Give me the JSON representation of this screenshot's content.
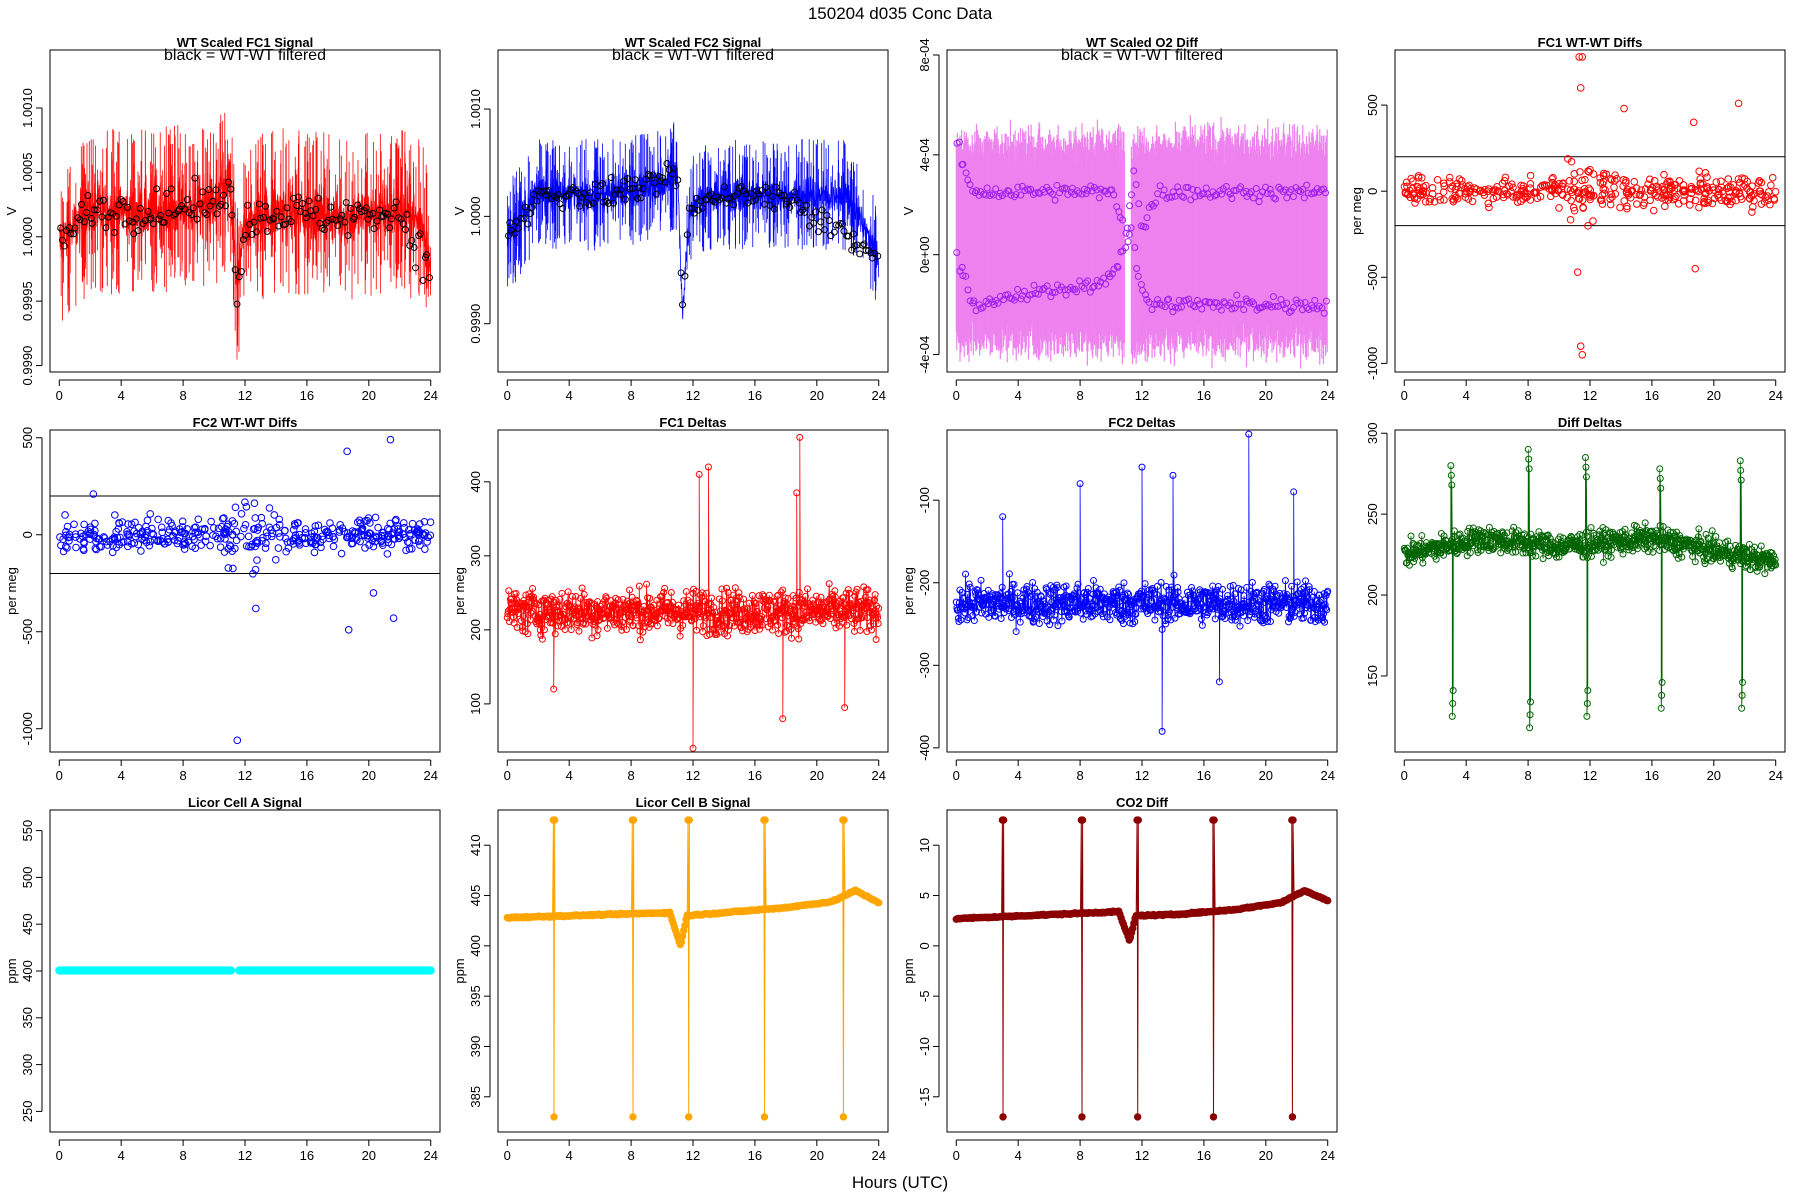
{
  "figure": {
    "title": "150204    d035    Conc Data",
    "xlabel": "Hours (UTC)"
  },
  "chart_data": [
    {
      "id": "fc1sig",
      "type": "line",
      "title": "WT Scaled FC1 Signal",
      "legend_text": "black = WT-WT filtered",
      "ylabel": "V",
      "xlim": [
        -0.6,
        24.6
      ],
      "xticks": [
        0,
        4,
        8,
        12,
        16,
        20,
        24
      ],
      "ylim": [
        0.99895,
        1.00145
      ],
      "yticks": [
        0.999,
        0.9995,
        1.0,
        1.0005,
        1.001
      ],
      "ytick_labels": [
        "0.9990",
        "0.9995",
        "1.0000",
        "1.0005",
        "1.0010"
      ],
      "series": [
        {
          "name": "signal",
          "color": "#ff0000",
          "pattern": "noisy",
          "base": [
            [
              0,
              0.99995
            ],
            [
              2,
              1.0002
            ],
            [
              6,
              1.0002
            ],
            [
              10,
              1.00025
            ],
            [
              11,
              1.0004
            ],
            [
              11.5,
              0.9996
            ],
            [
              12,
              1.0001
            ],
            [
              14,
              1.0002
            ],
            [
              18,
              1.00015
            ],
            [
              22,
              1.0002
            ],
            [
              23.5,
              1.0001
            ],
            [
              24,
              0.9997
            ]
          ],
          "noise": 0.00025
        },
        {
          "name": "WT-WT filtered",
          "color": "#000000",
          "pattern": "circles",
          "base": [
            [
              0,
              0.99995
            ],
            [
              2,
              1.0002
            ],
            [
              6,
              1.0002
            ],
            [
              10,
              1.00025
            ],
            [
              11,
              1.0004
            ],
            [
              11.5,
              0.9996
            ],
            [
              12,
              1.0001
            ],
            [
              14,
              1.0002
            ],
            [
              18,
              1.00015
            ],
            [
              22,
              1.0002
            ],
            [
              24,
              0.9997
            ]
          ],
          "noise": 0.00015
        }
      ]
    },
    {
      "id": "fc2sig",
      "type": "line",
      "title": "WT Scaled FC2 Signal",
      "legend_text": "black = WT-WT filtered",
      "ylabel": "V",
      "xlim": [
        -0.6,
        24.6
      ],
      "xticks": [
        0,
        4,
        8,
        12,
        16,
        20,
        24
      ],
      "ylim": [
        0.99855,
        1.00155
      ],
      "yticks": [
        0.999,
        1.0,
        1.001
      ],
      "ytick_labels": [
        "0.9990",
        "1.0000",
        "1.0010"
      ],
      "series": [
        {
          "name": "signal",
          "color": "#0000ff",
          "pattern": "noisy",
          "base": [
            [
              0,
              0.9998
            ],
            [
              2,
              1.0002
            ],
            [
              6,
              1.0002
            ],
            [
              10,
              1.0003
            ],
            [
              11,
              1.0004
            ],
            [
              11.3,
              0.9991
            ],
            [
              11.8,
              1.0001
            ],
            [
              14,
              1.0002
            ],
            [
              18,
              1.0002
            ],
            [
              22,
              1.0002
            ],
            [
              24,
              0.9996
            ]
          ],
          "noise": 0.0002
        },
        {
          "name": "WT-WT filtered",
          "color": "#000000",
          "pattern": "circles",
          "base": [
            [
              0,
              0.9998
            ],
            [
              2,
              1.0002
            ],
            [
              6,
              1.0002
            ],
            [
              10,
              1.0003
            ],
            [
              11,
              1.0004
            ],
            [
              11.3,
              0.9991
            ],
            [
              11.8,
              1.0001
            ],
            [
              14,
              1.0002
            ],
            [
              18,
              1.0002
            ],
            [
              24,
              0.9996
            ]
          ],
          "noise": 0.00012
        }
      ]
    },
    {
      "id": "o2diff",
      "type": "line",
      "title": "WT Scaled O2 Diff",
      "legend_text": "black = WT-WT filtered",
      "ylabel": "V",
      "xlim": [
        -0.6,
        24.6
      ],
      "xticks": [
        0,
        4,
        8,
        12,
        16,
        20,
        24
      ],
      "ylim": [
        -0.00047,
        0.00082
      ],
      "yticks": [
        -0.0004,
        0.0,
        0.0004,
        0.0008
      ],
      "ytick_labels": [
        "-4e-04",
        "0e+00",
        "4e-04",
        "8e-04"
      ],
      "series": [
        {
          "name": "signal band",
          "color": "#ee82ee",
          "pattern": "band",
          "upper": 0.00045,
          "lower": -0.00035
        },
        {
          "name": "upper level",
          "color": "#a020f0",
          "pattern": "circles",
          "base": [
            [
              0,
              0.00045
            ],
            [
              1,
              0.00025
            ],
            [
              10,
              0.00025
            ],
            [
              11,
              0.0001
            ],
            [
              11.5,
              0.00035
            ],
            [
              12,
              0.0001
            ],
            [
              13,
              0.00025
            ],
            [
              24,
              0.00025
            ]
          ],
          "noise": 3e-05
        },
        {
          "name": "lower level",
          "color": "#a020f0",
          "pattern": "circles",
          "base": [
            [
              0,
              0.0
            ],
            [
              1,
              -0.0002
            ],
            [
              10,
              -0.0001
            ],
            [
              11.3,
              0.0001
            ],
            [
              11.8,
              -0.0001
            ],
            [
              12.5,
              -0.0002
            ],
            [
              24,
              -0.0002
            ]
          ],
          "noise": 3e-05
        }
      ]
    },
    {
      "id": "fc1wt",
      "type": "scatter",
      "title": "FC1 WT-WT Diffs",
      "ylabel": "per meg",
      "xlim": [
        -0.6,
        24.6
      ],
      "xticks": [
        0,
        4,
        8,
        12,
        16,
        20,
        24
      ],
      "ylim": [
        -1050,
        820
      ],
      "yticks": [
        -1000,
        -500,
        0,
        500
      ],
      "ytick_labels": [
        "-1000",
        "-500",
        "0",
        "500"
      ],
      "hlines": [
        200,
        -200
      ],
      "series": [
        {
          "name": "diffs",
          "color": "#ff0000",
          "pattern": "scatter",
          "center": 0,
          "spread": 80,
          "outliers": [
            [
              11.3,
              780
            ],
            [
              11.5,
              780
            ],
            [
              11.4,
              600
            ],
            [
              11.2,
              -470
            ],
            [
              11.4,
              -900
            ],
            [
              11.5,
              -950
            ],
            [
              14.2,
              480
            ],
            [
              18.7,
              400
            ],
            [
              21.6,
              510
            ],
            [
              18.8,
              -450
            ]
          ]
        }
      ]
    },
    {
      "id": "fc2wt",
      "type": "scatter",
      "title": "FC2 WT-WT Diffs",
      "ylabel": "per meg",
      "xlim": [
        -0.6,
        24.6
      ],
      "xticks": [
        0,
        4,
        8,
        12,
        16,
        20,
        24
      ],
      "ylim": [
        -1120,
        540
      ],
      "yticks": [
        -1000,
        -500,
        0,
        500
      ],
      "ytick_labels": [
        "-1000",
        "-500",
        "0",
        "500"
      ],
      "hlines": [
        200,
        -200
      ],
      "series": [
        {
          "name": "diffs",
          "color": "#0000ff",
          "pattern": "scatter",
          "center": 0,
          "spread": 80,
          "outliers": [
            [
              11.5,
              -1060
            ],
            [
              21.4,
              490
            ],
            [
              18.6,
              430
            ],
            [
              18.7,
              -490
            ],
            [
              20.3,
              -300
            ],
            [
              21.6,
              -430
            ],
            [
              12.7,
              -380
            ],
            [
              2.2,
              210
            ]
          ]
        }
      ]
    },
    {
      "id": "fc1d",
      "type": "line",
      "title": "FC1 Deltas",
      "ylabel": "per meg",
      "xlim": [
        -0.6,
        24.6
      ],
      "xticks": [
        0,
        4,
        8,
        12,
        16,
        20,
        24
      ],
      "ylim": [
        35,
        470
      ],
      "yticks": [
        100,
        200,
        300,
        400
      ],
      "ytick_labels": [
        "100",
        "200",
        "300",
        "400"
      ],
      "series": [
        {
          "name": "deltas",
          "color": "#ff0000",
          "pattern": "noisycircles",
          "base": [
            [
              0,
              225
            ],
            [
              24,
              225
            ]
          ],
          "noise": 30,
          "outliers": [
            [
              12,
              40
            ],
            [
              18.9,
              460
            ],
            [
              13,
              420
            ],
            [
              12.4,
              410
            ],
            [
              18.7,
              385
            ],
            [
              21.8,
              95
            ],
            [
              3,
              120
            ],
            [
              17.8,
              80
            ]
          ]
        }
      ]
    },
    {
      "id": "fc2d",
      "type": "line",
      "title": "FC2 Deltas",
      "ylabel": "per meg",
      "xlim": [
        -0.6,
        24.6
      ],
      "xticks": [
        0,
        4,
        8,
        12,
        16,
        20,
        24
      ],
      "ylim": [
        -405,
        -15
      ],
      "yticks": [
        -100,
        -200,
        -300,
        -400
      ],
      "ytick_labels": [
        "-100",
        "-200",
        "-300",
        "-400"
      ],
      "series": [
        {
          "name": "deltas",
          "color": "#0000ff",
          "pattern": "noisycircles",
          "base": [
            [
              0,
              -225
            ],
            [
              24,
              -225
            ]
          ],
          "noise": 25,
          "outliers": [
            [
              18.9,
              -20
            ],
            [
              12,
              -60
            ],
            [
              13.3,
              -380
            ],
            [
              8,
              -80
            ],
            [
              14,
              -70
            ],
            [
              3,
              -120
            ],
            [
              17,
              -320
            ],
            [
              21.8,
              -90
            ]
          ]
        }
      ]
    },
    {
      "id": "diffd",
      "type": "line",
      "title": "Diff Deltas",
      "ylabel": "",
      "xlim": [
        -0.6,
        24.6
      ],
      "xticks": [
        0,
        4,
        8,
        12,
        16,
        20,
        24
      ],
      "ylim": [
        103,
        302
      ],
      "yticks": [
        150,
        200,
        250,
        300
      ],
      "ytick_labels": [
        "150",
        "200",
        "250",
        "300"
      ],
      "series": [
        {
          "name": "deltas",
          "color": "#006400",
          "pattern": "noisycircles",
          "base": [
            [
              0,
              225
            ],
            [
              5,
              235
            ],
            [
              10,
              230
            ],
            [
              12.5,
              232
            ],
            [
              16,
              235
            ],
            [
              24,
              220
            ]
          ],
          "noise": 8,
          "spikes": [
            [
              3.1,
              280,
              125
            ],
            [
              8.1,
              290,
              118
            ],
            [
              11.8,
              285,
              125
            ],
            [
              16.6,
              278,
              130
            ],
            [
              21.8,
              283,
              130
            ]
          ]
        }
      ]
    },
    {
      "id": "licorA",
      "type": "line",
      "title": "Licor Cell A Signal",
      "ylabel": "ppm",
      "xlim": [
        -0.6,
        24.6
      ],
      "xticks": [
        0,
        4,
        8,
        12,
        16,
        20,
        24
      ],
      "ylim": [
        228,
        572
      ],
      "yticks": [
        250,
        300,
        350,
        400,
        450,
        500,
        550
      ],
      "ytick_labels": [
        "250",
        "300",
        "350",
        "400",
        "450",
        "500",
        "550"
      ],
      "series": [
        {
          "name": "cell A",
          "color": "#00ffff",
          "pattern": "flat",
          "value": 400.5,
          "gap": [
            11.1,
            11.6
          ]
        }
      ]
    },
    {
      "id": "licorB",
      "type": "line",
      "title": "Licor Cell B Signal",
      "ylabel": "ppm",
      "xlim": [
        -0.6,
        24.6
      ],
      "xticks": [
        0,
        4,
        8,
        12,
        16,
        20,
        24
      ],
      "ylim": [
        381.5,
        413.5
      ],
      "yticks": [
        385,
        390,
        395,
        400,
        405,
        410
      ],
      "ytick_labels": [
        "385",
        "390",
        "395",
        "400",
        "405",
        "410"
      ],
      "series": [
        {
          "name": "cell B",
          "color": "#ffa500",
          "pattern": "trend",
          "base": [
            [
              0,
              402.8
            ],
            [
              10.5,
              403.3
            ],
            [
              11.2,
              400
            ],
            [
              11.6,
              403
            ],
            [
              14,
              403.3
            ],
            [
              18,
              403.8
            ],
            [
              21,
              404.4
            ],
            [
              22.5,
              405.5
            ],
            [
              24,
              404.3
            ]
          ],
          "spikes": [
            [
              3.0,
              412.5,
              383
            ],
            [
              8.1,
              412.5,
              383
            ],
            [
              11.7,
              412.5,
              383
            ],
            [
              16.6,
              412.5,
              383
            ],
            [
              21.7,
              412.5,
              383
            ]
          ]
        }
      ]
    },
    {
      "id": "co2d",
      "type": "line",
      "title": "CO2 Diff",
      "ylabel": "ppm",
      "xlim": [
        -0.6,
        24.6
      ],
      "xticks": [
        0,
        4,
        8,
        12,
        16,
        20,
        24
      ],
      "ylim": [
        -18.5,
        13.5
      ],
      "yticks": [
        -15,
        -10,
        -5,
        0,
        5,
        10
      ],
      "ytick_labels": [
        "-15",
        "-10",
        "-5",
        "0",
        "5",
        "10"
      ],
      "series": [
        {
          "name": "co2 diff",
          "color": "#8b0000",
          "pattern": "trend",
          "base": [
            [
              0,
              2.7
            ],
            [
              10.5,
              3.4
            ],
            [
              11.2,
              0.5
            ],
            [
              11.6,
              3.0
            ],
            [
              14,
              3.1
            ],
            [
              18,
              3.6
            ],
            [
              21,
              4.3
            ],
            [
              22.5,
              5.5
            ],
            [
              24,
              4.5
            ]
          ],
          "spikes": [
            [
              3.0,
              12.5,
              -17
            ],
            [
              8.1,
              12.5,
              -17
            ],
            [
              11.7,
              12.5,
              -17
            ],
            [
              16.6,
              12.5,
              -17
            ],
            [
              21.7,
              12.5,
              -17
            ]
          ]
        }
      ]
    }
  ]
}
